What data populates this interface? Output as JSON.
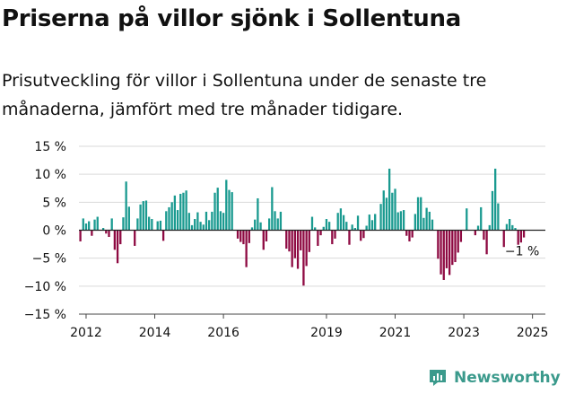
{
  "title": "Priserna på villor sjönk i Sollentuna",
  "subtitle": "Prisutveckling för villor i Sollentuna under de senaste tre månaderna, jämfört med tre månader tidigare.",
  "brand": {
    "name": "Newsworthy",
    "icon": "newsworthy-logo-icon"
  },
  "colors": {
    "positive": "#1a9a90",
    "negative": "#8e0a42",
    "zero_line": "#222222",
    "grid": "#d9d9d9"
  },
  "chart_data": {
    "type": "bar",
    "x_start": "2011-11",
    "x_end": "2025-05",
    "ylim": [
      -15,
      15
    ],
    "y_ticks": [
      15,
      10,
      5,
      0,
      -5,
      -10,
      -15
    ],
    "y_tick_labels": [
      "15 %",
      "10 %",
      "5 %",
      "0 %",
      "−5 %",
      "−10 %",
      "−15 %"
    ],
    "x_tick_labels": [
      "2012",
      "2014",
      "2016",
      "2019",
      "2021",
      "2023",
      "2025"
    ],
    "x_ticks": [
      "2012-01",
      "2014-01",
      "2016-01",
      "2019-01",
      "2021-01",
      "2023-01",
      "2025-01"
    ],
    "annotation": "−1 %",
    "series": [
      {
        "values": [
          -2.0,
          2.1,
          1.2,
          1.6,
          -1.0,
          1.9,
          2.4,
          0,
          0.4,
          -0.6,
          -1.2,
          2.1,
          -3.5,
          -5.9,
          -2.5,
          2.3,
          8.7,
          4.2,
          0,
          -2.8,
          2.1,
          4.6,
          5.2,
          5.3,
          2.4,
          2.0,
          0,
          1.6,
          1.7,
          -1.9,
          3.4,
          4.1,
          5.0,
          6.2,
          3.6,
          6.5,
          6.7,
          7.1,
          3.1,
          0.9,
          2.0,
          3.2,
          1.5,
          1.0,
          3.3,
          1.8,
          3.3,
          6.7,
          7.6,
          3.4,
          3.1,
          9.0,
          7.2,
          6.8,
          0,
          -1.5,
          -2.1,
          -2.5,
          -6.6,
          -2.3,
          0.5,
          1.9,
          5.7,
          1.4,
          -3.5,
          -2.0,
          2.1,
          7.7,
          3.4,
          2.1,
          3.3,
          0,
          -3.3,
          -3.8,
          -6.6,
          -5.0,
          -6.9,
          -3.6,
          -9.9,
          -6.4,
          -3.9,
          2.4,
          0.5,
          -2.8,
          -0.9,
          0.6,
          2.0,
          1.5,
          -2.5,
          -1.5,
          3.1,
          3.9,
          2.7,
          1.5,
          -2.6,
          1.0,
          0.4,
          2.6,
          -1.9,
          -1.4,
          0.8,
          2.8,
          1.8,
          2.9,
          0,
          4.7,
          7.1,
          5.8,
          11.0,
          6.7,
          7.4,
          3.2,
          3.4,
          3.6,
          -1.0,
          -2.0,
          -1.3,
          2.9,
          5.9,
          5.9,
          2.2,
          4.0,
          3.3,
          1.9,
          0,
          -5.1,
          -7.9,
          -8.9,
          -6.8,
          -8.0,
          -6.2,
          -5.7,
          -4.0,
          -2.1,
          0,
          3.9,
          0,
          0,
          -0.9,
          0.8,
          4.1,
          -1.7,
          -4.3,
          0.9,
          7.0,
          11.0,
          4.8,
          0,
          -3.0,
          1.1,
          2.0,
          0.9,
          0.4,
          -2.6,
          -2.2,
          -1.3
        ]
      }
    ]
  }
}
